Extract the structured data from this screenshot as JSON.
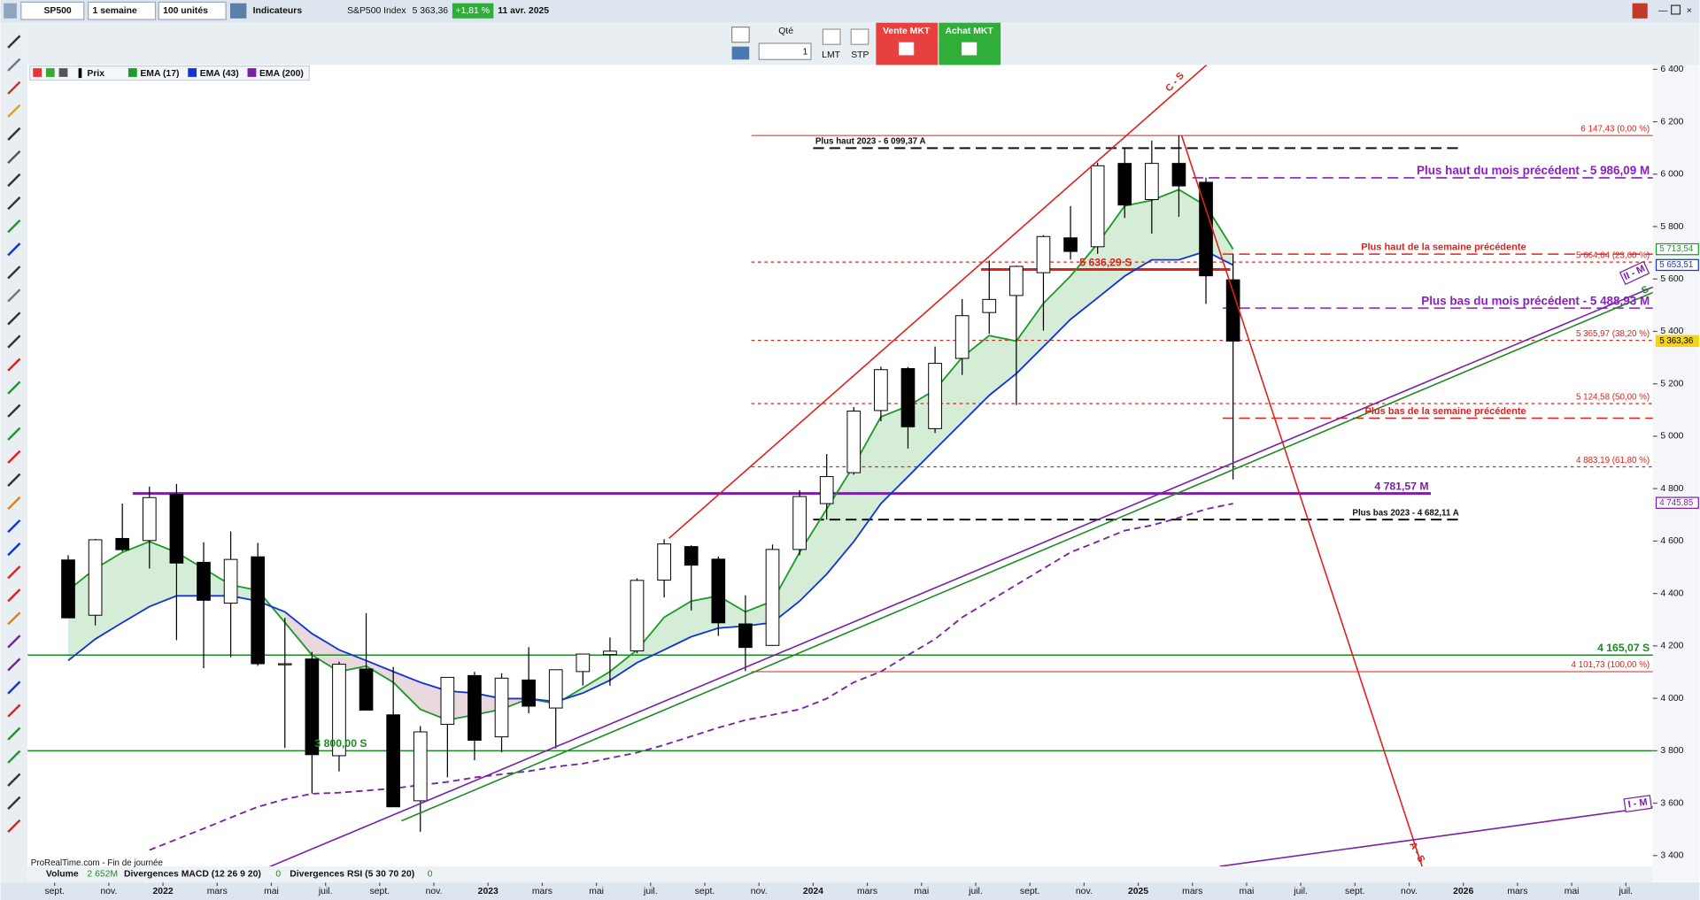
{
  "toolbar": {
    "symbol": "SP500",
    "period": "1 semaine",
    "units": "100 unités",
    "indicators": "Indicateurs",
    "instrument": "S&P500 Index",
    "last": "5 363,36",
    "change": "+1,81 %",
    "date": "11 avr. 2025",
    "qty_label": "Qté",
    "qty": "1",
    "limit": "LMT",
    "stop": "STP",
    "sell": "Vente MKT",
    "buy": "Achat MKT"
  },
  "footer": {
    "source": "ProRealTime.com - Fin de journée",
    "volume": "Volume",
    "volume_value": "2 652M",
    "macd": "Divergences MACD (12 26 9 20)",
    "macd_value": "0",
    "rsi": "Divergences RSI (5 30 70 20)",
    "rsi_value": "0"
  },
  "chart_data": {
    "type": "candlestick",
    "name": "Prix",
    "up_color": "#ffffff",
    "down_color": "#000000",
    "x": [
      "2021-09",
      "2021-10",
      "2021-11",
      "2021-12",
      "2022-01",
      "2022-02",
      "2022-03",
      "2022-04",
      "2022-05",
      "2022-06",
      "2022-07",
      "2022-08",
      "2022-09",
      "2022-10",
      "2022-11",
      "2022-12",
      "2023-01",
      "2023-02",
      "2023-03",
      "2023-04",
      "2023-05",
      "2023-06",
      "2023-07",
      "2023-08",
      "2023-09",
      "2023-10",
      "2023-11",
      "2023-12",
      "2024-01",
      "2024-02",
      "2024-03",
      "2024-04",
      "2024-05",
      "2024-06",
      "2024-07",
      "2024-08",
      "2024-09",
      "2024-10",
      "2024-11",
      "2024-12",
      "2025-01",
      "2025-02",
      "2025-03",
      "2025-04"
    ],
    "open": [
      4528,
      4317,
      4610,
      4602,
      4778,
      4519,
      4363,
      4540,
      4130,
      4150,
      3781,
      4112,
      3937,
      3609,
      3901,
      4087,
      3853,
      4070,
      3963,
      4102,
      4167,
      4181,
      4451,
      4579,
      4531,
      4284,
      4202,
      4568,
      4743,
      4861,
      5098,
      5258,
      5029,
      5297,
      5472,
      5537,
      5624,
      5757,
      5723,
      6041,
      5903,
      6041,
      5969,
      5597
    ],
    "high": [
      4546,
      4608,
      4743,
      4808,
      4818,
      4595,
      4637,
      4593,
      4307,
      4177,
      4140,
      4325,
      4120,
      3894,
      4080,
      4101,
      4095,
      4195,
      4110,
      4170,
      4232,
      4458,
      4607,
      4584,
      4541,
      4393,
      4587,
      4794,
      4932,
      5111,
      5265,
      5264,
      5342,
      5523,
      5670,
      5651,
      5767,
      5878,
      6044,
      6100,
      6128,
      6147,
      5987,
      5695
    ],
    "low": [
      4306,
      4278,
      4560,
      4495,
      4222,
      4115,
      4157,
      4124,
      3811,
      3637,
      3721,
      3955,
      3585,
      3491,
      3699,
      3764,
      3794,
      3943,
      3809,
      4049,
      4048,
      4172,
      4385,
      4335,
      4238,
      4104,
      4200,
      4546,
      4682,
      4853,
      5057,
      4953,
      5012,
      5234,
      5391,
      5119,
      5403,
      5674,
      5696,
      5833,
      5773,
      5837,
      5505,
      4835
    ],
    "close": [
      4307,
      4605,
      4567,
      4766,
      4516,
      4374,
      4530,
      4132,
      4132,
      3785,
      4130,
      3955,
      3586,
      3872,
      4080,
      3840,
      4077,
      3970,
      4109,
      4169,
      4180,
      4450,
      4589,
      4508,
      4288,
      4194,
      4568,
      4770,
      4846,
      5096,
      5254,
      5036,
      5278,
      5460,
      5522,
      5648,
      5762,
      5705,
      6032,
      5882,
      6041,
      5955,
      5612,
      5363
    ],
    "series": [
      {
        "name": "EMA (17)",
        "color": "#1e9a2a",
        "values": [
          4412,
          4495,
          4557,
          4598,
          4557,
          4495,
          4433,
          4412,
          4289,
          4165,
          4102,
          4123,
          4061,
          3958,
          3917,
          3937,
          3958,
          3999,
          3979,
          4040,
          4102,
          4185,
          4309,
          4371,
          4391,
          4330,
          4371,
          4557,
          4722,
          4888,
          5074,
          5115,
          5177,
          5301,
          5384,
          5363,
          5507,
          5611,
          5735,
          5879,
          5900,
          5941,
          5879,
          5714
        ]
      },
      {
        "name": "EMA (43)",
        "color": "#1034d8",
        "values": [
          4144,
          4226,
          4289,
          4350,
          4391,
          4391,
          4391,
          4371,
          4330,
          4247,
          4185,
          4144,
          4102,
          4061,
          4028,
          4020,
          3999,
          3999,
          3987,
          4020,
          4069,
          4136,
          4185,
          4235,
          4268,
          4276,
          4289,
          4371,
          4474,
          4598,
          4743,
          4846,
          4950,
          5053,
          5156,
          5239,
          5342,
          5446,
          5528,
          5611,
          5673,
          5673,
          5706,
          5653
        ]
      },
      {
        "name": "EMA (200)",
        "color": "#7a1fa6",
        "dashed": true,
        "values": [
          null,
          null,
          null,
          3421,
          3462,
          3503,
          3545,
          3586,
          3615,
          3636,
          3640,
          3648,
          3656,
          3669,
          3681,
          3698,
          3710,
          3722,
          3739,
          3751,
          3772,
          3793,
          3822,
          3855,
          3888,
          3917,
          3937,
          3958,
          3999,
          4061,
          4102,
          4165,
          4226,
          4309,
          4371,
          4433,
          4495,
          4557,
          4598,
          4640,
          4660,
          4689,
          4722,
          4743
        ]
      }
    ],
    "ylim": [
      3358.6,
      6416.5
    ],
    "yticks": [
      {
        "value": 3400,
        "label": "3 400"
      },
      {
        "value": 3600,
        "label": "3 600"
      },
      {
        "value": 3800,
        "label": "3 800"
      },
      {
        "value": 4000,
        "label": "4 000"
      },
      {
        "value": 4200,
        "label": "4 200"
      },
      {
        "value": 4400,
        "label": "4 400"
      },
      {
        "value": 4600,
        "label": "4 600"
      },
      {
        "value": 4800,
        "label": "4 800"
      },
      {
        "value": 5000,
        "label": "5 000"
      },
      {
        "value": 5200,
        "label": "5 200"
      },
      {
        "value": 5400,
        "label": "5 400"
      },
      {
        "value": 5600,
        "label": "5 600"
      },
      {
        "value": 5800,
        "label": "5 800"
      },
      {
        "value": 6000,
        "label": "6 000"
      },
      {
        "value": 6200,
        "label": "6 200"
      },
      {
        "value": 6400,
        "label": "6 400"
      }
    ],
    "xlim": [
      "2021-08",
      "2026-08"
    ],
    "xticks": [
      {
        "value": "2021-09",
        "label": "sept."
      },
      {
        "value": "2021-11",
        "label": "nov."
      },
      {
        "value": "2022-01",
        "label": "2022"
      },
      {
        "value": "2022-03",
        "label": "mars"
      },
      {
        "value": "2022-05",
        "label": "mai"
      },
      {
        "value": "2022-07",
        "label": "juil."
      },
      {
        "value": "2022-09",
        "label": "sept."
      },
      {
        "value": "2022-11",
        "label": "nov."
      },
      {
        "value": "2023-01",
        "label": "2023"
      },
      {
        "value": "2023-03",
        "label": "mars"
      },
      {
        "value": "2023-05",
        "label": "mai"
      },
      {
        "value": "2023-07",
        "label": "juil."
      },
      {
        "value": "2023-09",
        "label": "sept."
      },
      {
        "value": "2023-11",
        "label": "nov."
      },
      {
        "value": "2024-01",
        "label": "2024"
      },
      {
        "value": "2024-03",
        "label": "mars"
      },
      {
        "value": "2024-05",
        "label": "mai"
      },
      {
        "value": "2024-07",
        "label": "juil."
      },
      {
        "value": "2024-09",
        "label": "sept."
      },
      {
        "value": "2024-11",
        "label": "nov."
      },
      {
        "value": "2025-01",
        "label": "2025"
      },
      {
        "value": "2025-03",
        "label": "mars"
      },
      {
        "value": "2025-05",
        "label": "mai"
      },
      {
        "value": "2025-07",
        "label": "juil."
      },
      {
        "value": "2025-09",
        "label": "sept."
      },
      {
        "value": "2025-11",
        "label": "nov."
      },
      {
        "value": "2026-01",
        "label": "2026"
      },
      {
        "value": "2026-03",
        "label": "mars"
      },
      {
        "value": "2026-05",
        "label": "mai"
      },
      {
        "value": "2026-07",
        "label": "juil."
      }
    ],
    "levels": [
      {
        "label": "6 147,43 (0,00 %)",
        "value": 6147.43,
        "color": "#e0201c",
        "style": "solid"
      },
      {
        "label": "5 664,64 (23,60 %)",
        "value": 5664.64,
        "color": "#e0201c",
        "style": "dotted"
      },
      {
        "label": "5 365,97 (38,20 %)",
        "value": 5365.97,
        "color": "#e0201c",
        "style": "dotted"
      },
      {
        "label": "5 124,58 (50,00 %)",
        "value": 5124.58,
        "color": "#e0201c",
        "style": "dotted"
      },
      {
        "label": "4 883,19 (61,80 %)",
        "value": 4883.19,
        "color": "#e0201c",
        "style": "dotted"
      },
      {
        "label": "4 101,73 (100,00 %)",
        "value": 4101.73,
        "color": "#e0201c",
        "style": "solid"
      },
      {
        "label": "Plus haut 2023 -  6 099,37 A",
        "value": 6099.37,
        "color": "#111111",
        "style": "dashed"
      },
      {
        "label": "Plus bas 2023 - 4 682,11 A",
        "value": 4682.11,
        "color": "#111111",
        "style": "dashed"
      },
      {
        "label": "Plus haut du mois précédent - 5 986,09 M",
        "value": 5986.09,
        "color": "#8a1fc0",
        "style": "dashed"
      },
      {
        "label": "Plus bas du mois précédent - 5 488,93 M",
        "value": 5488.93,
        "color": "#8a1fc0",
        "style": "dashed"
      },
      {
        "label": "Plus haut de la semaine précédente",
        "value": 5695,
        "color": "#e0201c",
        "style": "dashed"
      },
      {
        "label": "Plus bas de la semaine précédente",
        "value": 5069,
        "color": "#e0201c",
        "style": "dashed"
      },
      {
        "label": "4 781,57 M",
        "value": 4781.57,
        "color": "#7a1fa6",
        "style": "solid"
      },
      {
        "label": "4 165,07 S",
        "value": 4165.07,
        "color": "#1e8a22",
        "style": "solid"
      },
      {
        "label": "3 800,00 S",
        "value": 3800,
        "color": "#1e8a22",
        "style": "solid"
      },
      {
        "label": "5 636,29 S",
        "value": 5636.29,
        "color": "#e0201c",
        "style": "solid"
      }
    ],
    "price_tags": [
      {
        "label": "5 713,54",
        "value": 5713.54,
        "color": "#1e9a2a",
        "filled": false
      },
      {
        "label": "5 653,51",
        "value": 5653.51,
        "color": "#1034d8",
        "filled": false
      },
      {
        "label": "5 363,36",
        "value": 5363.36,
        "color": "#f2d21b",
        "filled": true
      },
      {
        "label": "4 745,85",
        "value": 4745.85,
        "color": "#7a1fa6",
        "filled": false
      }
    ],
    "annotations": [
      "C - S",
      "A - S",
      "II - M",
      "I - M",
      "S"
    ]
  }
}
